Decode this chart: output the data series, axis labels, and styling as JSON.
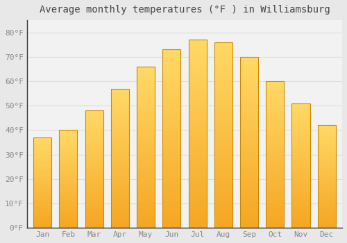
{
  "title": "Average monthly temperatures (°F ) in Williamsburg",
  "months": [
    "Jan",
    "Feb",
    "Mar",
    "Apr",
    "May",
    "Jun",
    "Jul",
    "Aug",
    "Sep",
    "Oct",
    "Nov",
    "Dec"
  ],
  "values": [
    37,
    40,
    48,
    57,
    66,
    73,
    77,
    76,
    70,
    60,
    51,
    42
  ],
  "bar_color_bottom": "#F5A623",
  "bar_color_top": "#FFD966",
  "bar_edge_color": "#CC8800",
  "background_color": "#E8E8E8",
  "plot_bg_color": "#F2F2F2",
  "grid_color": "#DDDDDD",
  "ylim": [
    0,
    85
  ],
  "yticks": [
    0,
    10,
    20,
    30,
    40,
    50,
    60,
    70,
    80
  ],
  "title_fontsize": 10,
  "tick_fontsize": 8,
  "tick_color": "#888888",
  "spine_color": "#333333"
}
